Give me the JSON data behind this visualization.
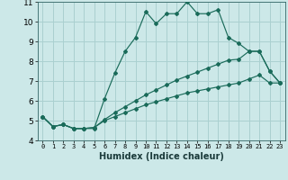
{
  "xlabel": "Humidex (Indice chaleur)",
  "bg_color": "#cce8e8",
  "grid_color": "#aad0d0",
  "line_color": "#1a6b5a",
  "xlim": [
    -0.5,
    23.5
  ],
  "ylim": [
    4,
    11
  ],
  "yticks": [
    4,
    5,
    6,
    7,
    8,
    9,
    10,
    11
  ],
  "xticks": [
    0,
    1,
    2,
    3,
    4,
    5,
    6,
    7,
    8,
    9,
    10,
    11,
    12,
    13,
    14,
    15,
    16,
    17,
    18,
    19,
    20,
    21,
    22,
    23
  ],
  "series": [
    [
      5.2,
      4.7,
      4.8,
      4.6,
      4.6,
      4.6,
      6.1,
      7.4,
      8.5,
      9.2,
      10.5,
      9.9,
      10.4,
      10.4,
      11.0,
      10.4,
      10.4,
      10.6,
      9.2,
      8.9,
      8.5,
      8.5,
      7.5,
      6.9
    ],
    [
      5.2,
      4.7,
      4.8,
      4.6,
      4.6,
      4.65,
      5.05,
      5.4,
      5.7,
      6.0,
      6.3,
      6.55,
      6.8,
      7.05,
      7.25,
      7.45,
      7.65,
      7.85,
      8.05,
      8.1,
      8.5,
      8.5,
      7.5,
      6.9
    ],
    [
      5.2,
      4.7,
      4.8,
      4.6,
      4.6,
      4.65,
      5.0,
      5.2,
      5.4,
      5.6,
      5.8,
      5.95,
      6.1,
      6.25,
      6.4,
      6.5,
      6.6,
      6.7,
      6.8,
      6.9,
      7.1,
      7.3,
      6.9,
      6.9
    ]
  ],
  "ytick_fontsize": 6.5,
  "xtick_fontsize": 5.0,
  "xlabel_fontsize": 7.0
}
